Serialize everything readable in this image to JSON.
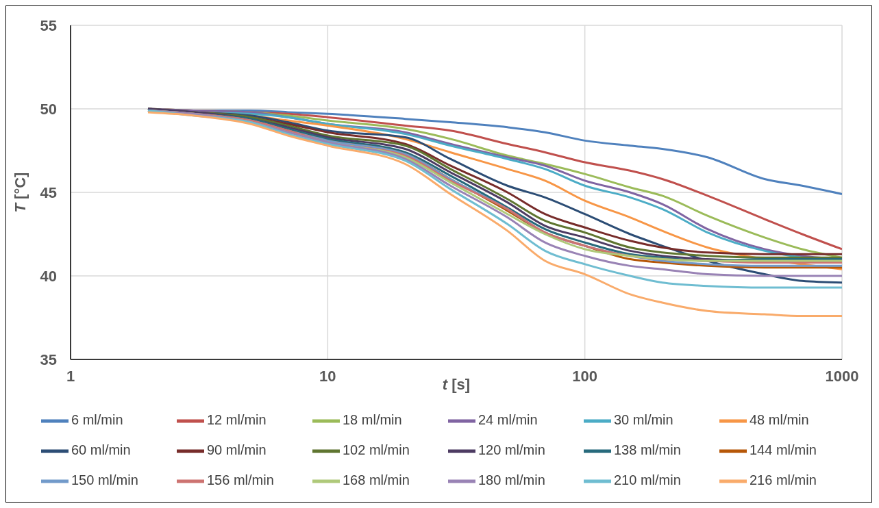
{
  "chart_data": {
    "type": "line",
    "xlabel": "t [s]",
    "ylabel": "T [°C]",
    "log": "x",
    "xlim": [
      1,
      1000
    ],
    "xticks": [
      1,
      10,
      100,
      1000
    ],
    "ylim": [
      35,
      55
    ],
    "yticks": [
      35,
      40,
      45,
      50,
      55
    ],
    "grid": true,
    "legend": "bottom",
    "marker": "none",
    "line_style": "solid",
    "x": [
      2,
      3,
      5,
      7,
      10,
      20,
      30,
      50,
      70,
      100,
      150,
      200,
      300,
      500,
      700,
      1000
    ],
    "series": [
      {
        "name": "6 ml/min",
        "color": "#4f81bd",
        "values": [
          50,
          49.9,
          49.9,
          49.8,
          49.7,
          49.4,
          49.2,
          48.9,
          48.6,
          48.1,
          47.8,
          47.6,
          47.1,
          45.8,
          45.4,
          44.9
        ]
      },
      {
        "name": "12 ml/min",
        "color": "#c0504d",
        "values": [
          50,
          49.9,
          49.8,
          49.7,
          49.5,
          49.0,
          48.7,
          47.9,
          47.4,
          46.8,
          46.3,
          45.8,
          44.8,
          43.4,
          42.5,
          41.6
        ]
      },
      {
        "name": "18 ml/min",
        "color": "#9bbb59",
        "values": [
          50,
          49.9,
          49.8,
          49.6,
          49.3,
          48.8,
          48.2,
          47.2,
          46.7,
          46.1,
          45.3,
          44.8,
          43.6,
          42.3,
          41.6,
          41.1
        ]
      },
      {
        "name": "24 ml/min",
        "color": "#8064a2",
        "values": [
          50,
          49.9,
          49.8,
          49.5,
          49.1,
          48.6,
          47.9,
          47.1,
          46.6,
          45.7,
          45.0,
          44.3,
          42.8,
          41.6,
          41.2,
          41.0
        ]
      },
      {
        "name": "30 ml/min",
        "color": "#4bacc6",
        "values": [
          50,
          49.8,
          49.7,
          49.5,
          49.1,
          48.5,
          47.8,
          47.0,
          46.4,
          45.4,
          44.7,
          44.0,
          42.6,
          41.5,
          41.1,
          40.9
        ]
      },
      {
        "name": "48 ml/min",
        "color": "#f79646",
        "values": [
          49.9,
          49.8,
          49.6,
          49.3,
          49.0,
          48.2,
          47.4,
          46.4,
          45.7,
          44.5,
          43.5,
          42.7,
          41.7,
          41.0,
          40.7,
          40.4
        ]
      },
      {
        "name": "60 ml/min",
        "color": "#2c4d75",
        "values": [
          50,
          49.8,
          49.6,
          49.2,
          48.7,
          48.3,
          47.0,
          45.4,
          44.7,
          43.7,
          42.5,
          41.8,
          40.9,
          40.1,
          39.7,
          39.6
        ]
      },
      {
        "name": "90 ml/min",
        "color": "#772c2a",
        "values": [
          50,
          49.8,
          49.5,
          49.1,
          48.6,
          47.9,
          46.6,
          45.0,
          43.7,
          42.9,
          42.1,
          41.7,
          41.4,
          41.3,
          41.3,
          41.3
        ]
      },
      {
        "name": "102 ml/min",
        "color": "#5f7530",
        "values": [
          50,
          49.8,
          49.5,
          49.0,
          48.4,
          47.8,
          46.4,
          44.6,
          43.3,
          42.6,
          41.7,
          41.4,
          41.2,
          41.1,
          41.1,
          41.1
        ]
      },
      {
        "name": "120 ml/min",
        "color": "#4d3b62",
        "values": [
          50,
          49.8,
          49.4,
          48.9,
          48.3,
          47.6,
          46.2,
          44.4,
          43.0,
          42.3,
          41.5,
          41.2,
          41.0,
          40.9,
          40.9,
          40.9
        ]
      },
      {
        "name": "138 ml/min",
        "color": "#276a7c",
        "values": [
          49.9,
          49.7,
          49.4,
          48.8,
          48.2,
          47.4,
          46.0,
          44.1,
          42.8,
          42.0,
          41.3,
          41.1,
          40.9,
          41.0,
          41.0,
          41.0
        ]
      },
      {
        "name": "144 ml/min",
        "color": "#b65708",
        "values": [
          49.9,
          49.7,
          49.3,
          48.7,
          48.1,
          47.3,
          45.8,
          43.9,
          42.6,
          41.8,
          41.0,
          40.8,
          40.6,
          40.5,
          40.5,
          40.5
        ]
      },
      {
        "name": "150 ml/min",
        "color": "#729aca",
        "values": [
          49.9,
          49.7,
          49.3,
          48.7,
          48.1,
          47.3,
          45.8,
          44.0,
          42.6,
          41.8,
          41.2,
          40.9,
          40.7,
          40.6,
          40.6,
          40.6
        ]
      },
      {
        "name": "156 ml/min",
        "color": "#cd7371",
        "values": [
          49.9,
          49.7,
          49.3,
          48.7,
          48.0,
          47.2,
          45.7,
          44.0,
          42.6,
          41.8,
          41.2,
          41.0,
          40.9,
          40.8,
          40.8,
          40.8
        ]
      },
      {
        "name": "168 ml/min",
        "color": "#afc97a",
        "values": [
          49.9,
          49.7,
          49.2,
          48.6,
          48.0,
          47.1,
          45.6,
          43.7,
          42.5,
          41.6,
          41.2,
          41.0,
          40.9,
          40.9,
          40.9,
          40.9
        ]
      },
      {
        "name": "180 ml/min",
        "color": "#9983b5",
        "values": [
          49.9,
          49.7,
          49.2,
          48.6,
          48.0,
          47.0,
          45.4,
          43.5,
          42.0,
          41.2,
          40.6,
          40.4,
          40.1,
          40.0,
          40.0,
          40.0
        ]
      },
      {
        "name": "210 ml/min",
        "color": "#6fbdd1",
        "values": [
          49.9,
          49.6,
          49.2,
          48.5,
          47.9,
          46.9,
          45.2,
          43.1,
          41.5,
          40.7,
          40.0,
          39.6,
          39.4,
          39.3,
          39.3,
          39.3
        ]
      },
      {
        "name": "216 ml/min",
        "color": "#f9ab6b",
        "values": [
          49.8,
          49.6,
          49.1,
          48.4,
          47.8,
          46.7,
          44.9,
          42.7,
          40.9,
          40.1,
          38.9,
          38.4,
          37.9,
          37.7,
          37.6,
          37.6
        ]
      }
    ]
  }
}
